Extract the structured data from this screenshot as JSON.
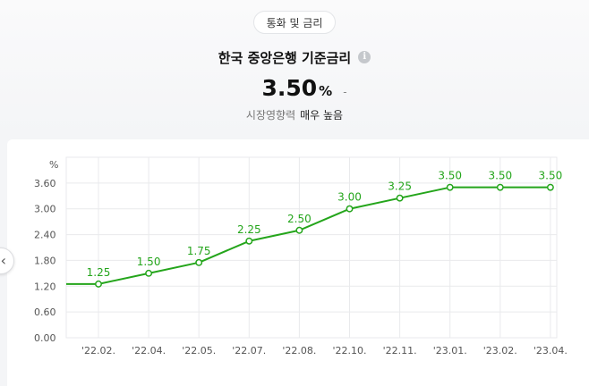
{
  "header": {
    "chip_label": "통화 및 금리",
    "title": "한국 중앙은행 기준금리",
    "info_icon": "info-icon",
    "value": "3.50",
    "unit": "%",
    "change": "-",
    "influence_label": "시장영향력",
    "influence_value": "매우 높음"
  },
  "nav": {
    "prev_icon": "chevron-left-icon",
    "prev_glyph": "‹"
  },
  "colors": {
    "line": "#24a51b",
    "grid": "#e9eaec",
    "text": "#555555"
  },
  "chart_data": {
    "type": "line",
    "ylabel": "%",
    "ylim": [
      0,
      4.2
    ],
    "yticks": [
      "0.00",
      "0.60",
      "1.20",
      "1.80",
      "2.40",
      "3.00",
      "3.60"
    ],
    "categories": [
      "'22.02.",
      "'22.04.",
      "'22.05.",
      "'22.07.",
      "'22.08.",
      "'22.10.",
      "'22.11.",
      "'23.01.",
      "'23.02.",
      "'23.04."
    ],
    "values": [
      1.25,
      1.5,
      1.75,
      2.25,
      2.5,
      3.0,
      3.25,
      3.5,
      3.5,
      3.5
    ],
    "labels": [
      "1.25",
      "1.50",
      "1.75",
      "2.25",
      "2.50",
      "3.00",
      "3.25",
      "3.50",
      "3.50",
      "3.50"
    ],
    "grid": true,
    "line_extends_left_at": 1.25
  }
}
